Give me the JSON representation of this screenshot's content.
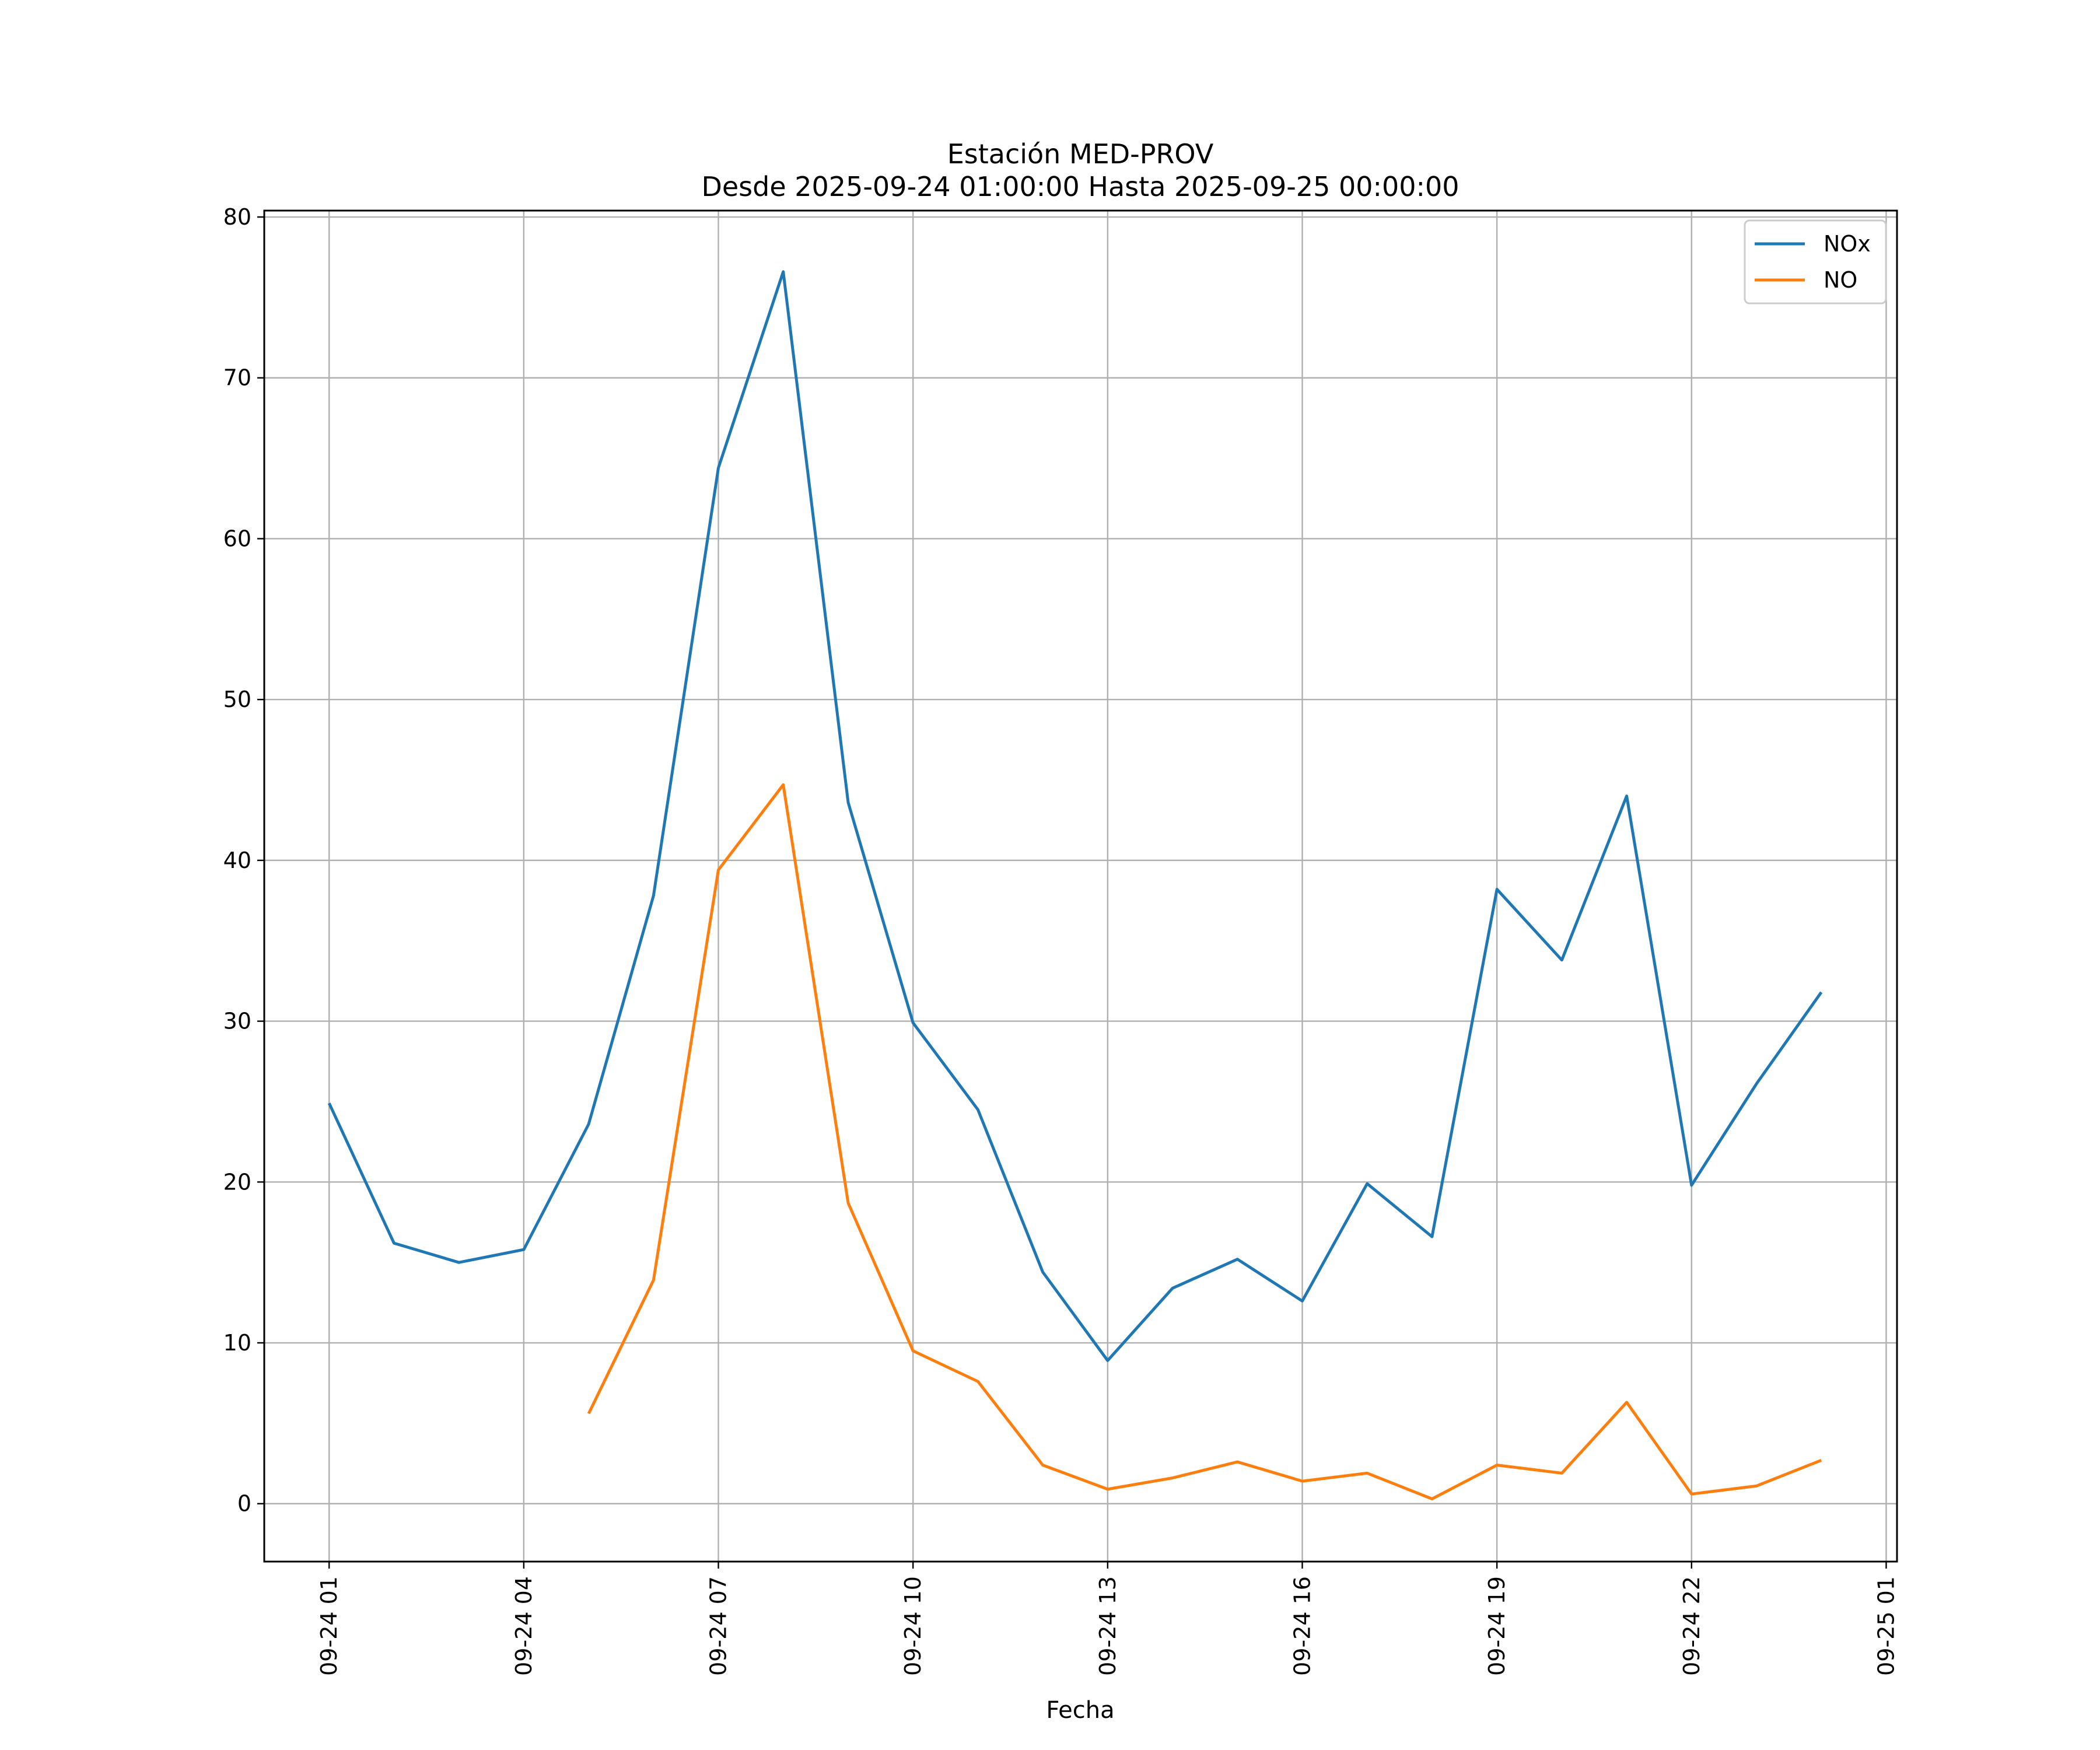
{
  "chart_data": {
    "type": "line",
    "title": "Estación MED-PROV",
    "subtitle": "Desde 2025-09-24 01:00:00 Hasta 2025-09-25 00:00:00",
    "xlabel": "Fecha",
    "ylabel": "",
    "x": [
      "09-24 01:00",
      "09-24 02:00",
      "09-24 03:00",
      "09-24 04:00",
      "09-24 05:00",
      "09-24 06:00",
      "09-24 07:00",
      "09-24 08:00",
      "09-24 09:00",
      "09-24 10:00",
      "09-24 11:00",
      "09-24 12:00",
      "09-24 13:00",
      "09-24 14:00",
      "09-24 15:00",
      "09-24 16:00",
      "09-24 17:00",
      "09-24 18:00",
      "09-24 19:00",
      "09-24 20:00",
      "09-24 21:00",
      "09-24 22:00",
      "09-24 23:00",
      "09-25 00:00"
    ],
    "xlim": [
      "09-24 00:00",
      "09-25 01:10"
    ],
    "x_ticks": [
      "09-24 01",
      "09-24 04",
      "09-24 07",
      "09-24 10",
      "09-24 13",
      "09-24 16",
      "09-24 19",
      "09-24 22",
      "09-25 01"
    ],
    "ylim": [
      -3.6,
      80.4
    ],
    "y_ticks": [
      0,
      10,
      20,
      30,
      40,
      50,
      60,
      70,
      80
    ],
    "grid": true,
    "legend_position": "top-right",
    "series": [
      {
        "name": "NOx",
        "color": "#1f77b4",
        "values": [
          24.9,
          16.2,
          15.0,
          15.8,
          23.6,
          37.8,
          64.4,
          76.6,
          43.6,
          29.9,
          24.5,
          14.4,
          8.9,
          13.4,
          15.2,
          12.6,
          19.9,
          16.6,
          38.2,
          33.8,
          44.0,
          19.8,
          26.1,
          31.8
        ]
      },
      {
        "name": "NO",
        "color": "#ff7f0e",
        "values": [
          null,
          null,
          null,
          null,
          5.6,
          13.9,
          39.4,
          44.7,
          18.7,
          9.5,
          7.6,
          2.4,
          0.9,
          1.6,
          2.6,
          1.4,
          1.9,
          0.3,
          2.4,
          1.9,
          6.3,
          0.6,
          1.1,
          2.7
        ]
      }
    ]
  }
}
